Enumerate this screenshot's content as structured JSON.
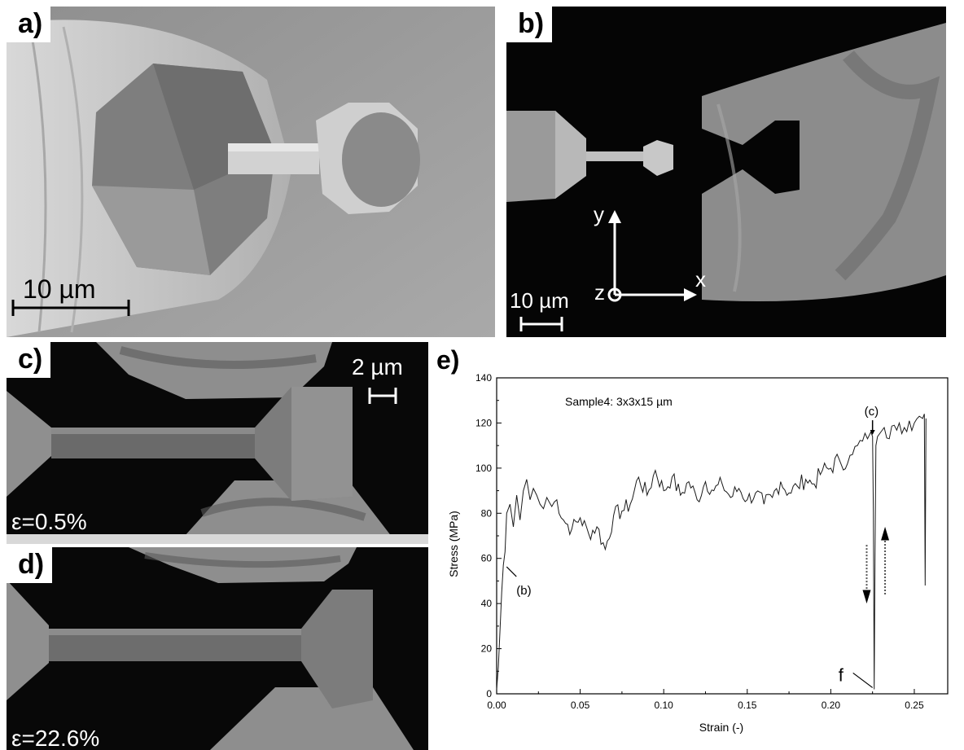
{
  "panels": {
    "a": {
      "label": "a)",
      "scale_bar": "10 µm"
    },
    "b": {
      "label": "b)",
      "scale_bar": "10 µm",
      "axes": {
        "y": "y",
        "x": "x",
        "z": "z"
      }
    },
    "c": {
      "label": "c)",
      "scale_bar": "2 µm",
      "strain": "ε=0.5%"
    },
    "d": {
      "label": "d)",
      "strain": "ε=22.6%"
    },
    "e": {
      "label": "e)"
    }
  },
  "chart_data": {
    "type": "line",
    "title": "",
    "sample_label": "Sample4: 3x3x15 µm",
    "xlabel": "Strain (-)",
    "ylabel": "Stress (MPa)",
    "xlim": [
      0.0,
      0.27
    ],
    "ylim": [
      0,
      140
    ],
    "xticks": [
      "0.00",
      "0.05",
      "0.10",
      "0.15",
      "0.20",
      "0.25"
    ],
    "yticks": [
      "0",
      "20",
      "40",
      "60",
      "80",
      "100",
      "120",
      "140"
    ],
    "grid": false,
    "annotations": [
      {
        "text": "(b)",
        "x": 0.005,
        "y": 57
      },
      {
        "text": "(c)",
        "x": 0.225,
        "y": 114
      },
      {
        "text": "f",
        "x": 0.226,
        "y": 2
      }
    ],
    "series": [
      {
        "x": [
          0.0,
          0.001,
          0.002,
          0.003,
          0.004,
          0.005,
          0.006,
          0.008,
          0.01,
          0.012,
          0.014,
          0.016,
          0.018,
          0.02,
          0.022,
          0.024,
          0.026,
          0.028,
          0.03,
          0.033,
          0.036,
          0.04,
          0.045,
          0.05,
          0.055,
          0.06,
          0.065,
          0.07,
          0.075,
          0.08,
          0.085,
          0.09,
          0.095,
          0.1,
          0.105,
          0.11,
          0.115,
          0.12,
          0.125,
          0.13,
          0.135,
          0.14,
          0.145,
          0.15,
          0.155,
          0.16,
          0.165,
          0.17,
          0.175,
          0.18,
          0.185,
          0.19,
          0.195,
          0.2,
          0.205,
          0.21,
          0.213,
          0.216,
          0.219,
          0.222,
          0.224,
          0.225,
          0.2255,
          0.226,
          0.2265,
          0.227,
          0.228,
          0.23,
          0.232,
          0.235,
          0.238,
          0.241,
          0.244,
          0.247,
          0.25,
          0.253,
          0.255,
          0.256,
          0.2565,
          0.257
        ],
        "y": [
          2,
          12,
          28,
          45,
          57,
          63,
          80,
          84,
          74,
          88,
          77,
          90,
          95,
          86,
          91,
          88,
          84,
          82,
          87,
          83,
          86,
          77,
          73,
          78,
          71,
          74,
          64,
          79,
          81,
          84,
          96,
          88,
          99,
          90,
          96,
          88,
          94,
          86,
          94,
          90,
          93,
          87,
          91,
          86,
          89,
          84,
          87,
          94,
          89,
          92,
          95,
          93,
          99,
          100,
          104,
          102,
          106,
          110,
          112,
          113,
          116,
          114,
          80,
          2,
          60,
          110,
          114,
          116,
          118,
          113,
          119,
          120,
          118,
          121,
          120,
          123,
          122,
          124,
          48,
          122
        ]
      }
    ]
  }
}
